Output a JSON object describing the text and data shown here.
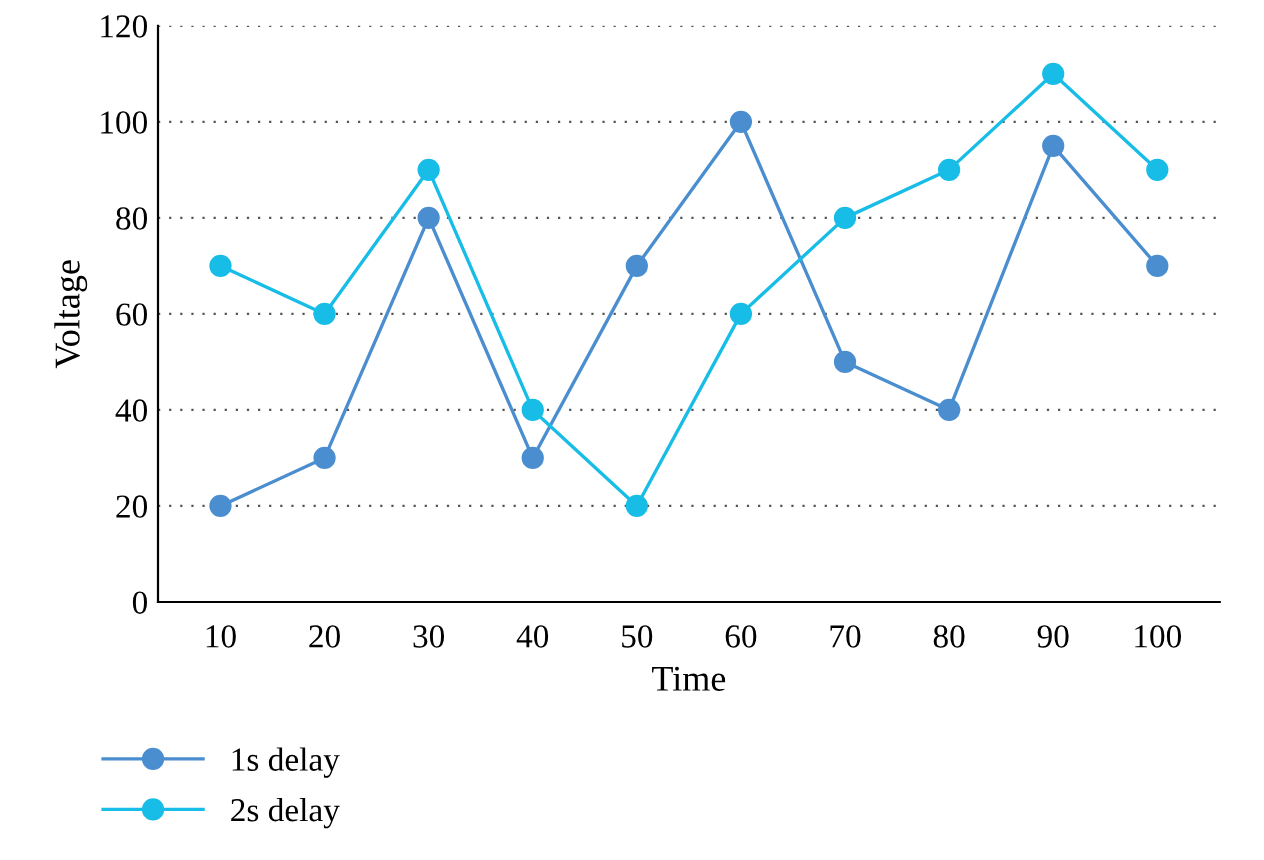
{
  "chart_data": {
    "type": "line",
    "xlabel": "Time",
    "ylabel": "Voltage",
    "categories": [
      "10",
      "20",
      "30",
      "40",
      "50",
      "60",
      "70",
      "80",
      "90",
      "100"
    ],
    "series": [
      {
        "name": "1s delay",
        "color": "#4a8ed0",
        "values": [
          20,
          30,
          80,
          30,
          70,
          100,
          50,
          40,
          95,
          70
        ]
      },
      {
        "name": "2s delay",
        "color": "#17bde6",
        "values": [
          70,
          60,
          90,
          40,
          20,
          60,
          80,
          90,
          110,
          90
        ]
      }
    ],
    "ylim": [
      0,
      120
    ],
    "yticks": [
      0,
      20,
      40,
      60,
      80,
      100,
      120
    ],
    "grid": "y",
    "legend": "bottom left",
    "marker": "circle",
    "line_style": "solid"
  }
}
